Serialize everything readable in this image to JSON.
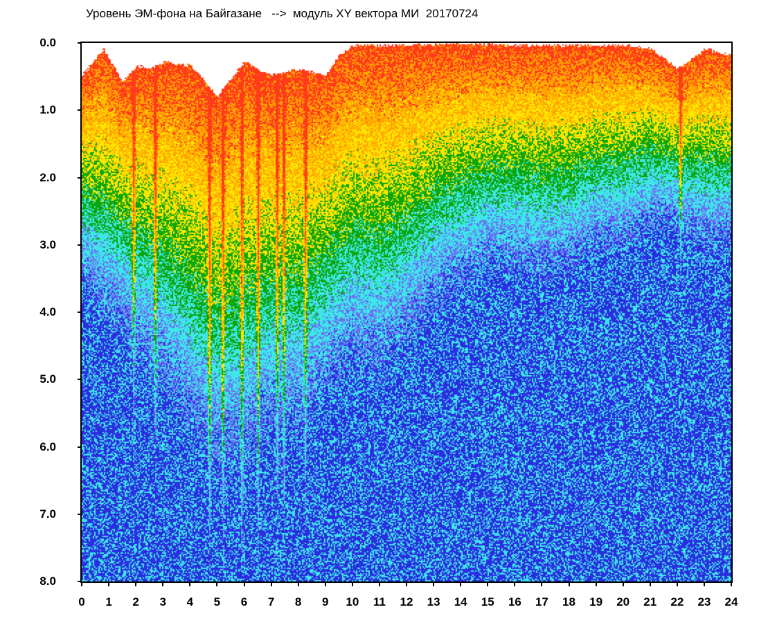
{
  "chart_data": {
    "type": "heatmap",
    "title": "Уровень ЭМ-фона на Байгазане   -->  модуль XY вектора МИ  20170724",
    "xlabel": "",
    "ylabel": "",
    "xlim": [
      0,
      24
    ],
    "ylim": [
      0.0,
      8.0
    ],
    "y_inverted": true,
    "x_ticks": [
      "0",
      "1",
      "2",
      "3",
      "4",
      "5",
      "6",
      "7",
      "8",
      "9",
      "10",
      "11",
      "12",
      "13",
      "14",
      "15",
      "16",
      "17",
      "18",
      "19",
      "20",
      "21",
      "22",
      "23",
      "24"
    ],
    "y_ticks": [
      "0.0",
      "1.0",
      "2.0",
      "3.0",
      "4.0",
      "5.0",
      "6.0",
      "7.0",
      "8.0"
    ],
    "colors": {
      "red": "#ff3b1a",
      "orange": "#ffa500",
      "yellow": "#ffe600",
      "green": "#0aa60a",
      "cyan": "#3ee6ea",
      "blue": "#6a6cf5",
      "dark_blue": "#2a2ee0"
    },
    "fire_vertical_streaks_hours": [
      1.9,
      2.7,
      4.7,
      5.2,
      5.9,
      6.5,
      7.2,
      7.45,
      8.25,
      22.1
    ],
    "top_envelope": [
      [
        0,
        0.5
      ],
      [
        0.8,
        0.1
      ],
      [
        1.5,
        0.6
      ],
      [
        2.0,
        0.35
      ],
      [
        2.5,
        0.4
      ],
      [
        3.0,
        0.3
      ],
      [
        4.0,
        0.35
      ],
      [
        5.0,
        0.8
      ],
      [
        6.0,
        0.3
      ],
      [
        7.0,
        0.5
      ],
      [
        8.0,
        0.4
      ],
      [
        9.0,
        0.5
      ],
      [
        9.5,
        0.2
      ],
      [
        10,
        0.05
      ],
      [
        12,
        0.05
      ],
      [
        14,
        0.02
      ],
      [
        16,
        0.05
      ],
      [
        18,
        0.05
      ],
      [
        20,
        0.05
      ],
      [
        21,
        0.1
      ],
      [
        22,
        0.4
      ],
      [
        23,
        0.1
      ],
      [
        24,
        0.2
      ]
    ],
    "activity_depth_profile": [
      [
        0,
        2.5
      ],
      [
        1,
        2.8
      ],
      [
        2,
        3.2
      ],
      [
        3,
        3.5
      ],
      [
        4,
        4.0
      ],
      [
        5,
        4.5
      ],
      [
        6,
        4.3
      ],
      [
        7,
        4.0
      ],
      [
        8,
        4.0
      ],
      [
        9,
        3.6
      ],
      [
        10,
        3.2
      ],
      [
        11,
        3.3
      ],
      [
        12,
        3.0
      ],
      [
        13,
        2.6
      ],
      [
        14,
        2.4
      ],
      [
        15,
        2.2
      ],
      [
        16,
        2.2
      ],
      [
        17,
        2.3
      ],
      [
        18,
        2.2
      ],
      [
        19,
        2.0
      ],
      [
        20,
        2.0
      ],
      [
        21,
        1.8
      ],
      [
        22,
        1.9
      ],
      [
        23,
        2.0
      ],
      [
        24,
        2.0
      ]
    ]
  }
}
